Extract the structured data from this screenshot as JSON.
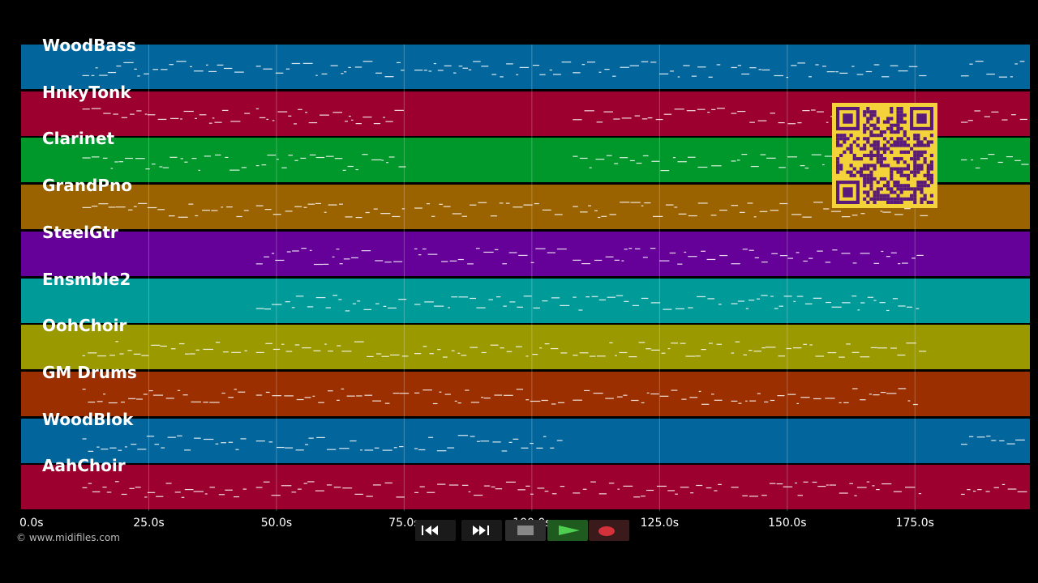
{
  "tracks": [
    {
      "name": "WoodBass",
      "color": "#02669c"
    },
    {
      "name": "HnkyTonk",
      "color": "#9c002f"
    },
    {
      "name": "Clarinet",
      "color": "#00972b"
    },
    {
      "name": "GrandPno",
      "color": "#9b6200"
    },
    {
      "name": "SteelGtr",
      "color": "#650099"
    },
    {
      "name": "Ensmble2",
      "color": "#009a98"
    },
    {
      "name": "OohChoir",
      "color": "#9a9900"
    },
    {
      "name": "GM Drums",
      "color": "#9b2f00"
    },
    {
      "name": "WoodBlok",
      "color": "#02669c"
    },
    {
      "name": "AahChoir",
      "color": "#9c002f"
    }
  ],
  "timeline": {
    "ticks": [
      "0.0s",
      "25.0s",
      "50.0s",
      "75.0s",
      "100.0s",
      "125.0s",
      "150.0s",
      "175.0s"
    ],
    "tick_values": [
      0,
      25,
      50,
      75,
      100,
      125,
      150,
      175
    ],
    "max_seconds": 197.5
  },
  "copyright": "© www.midifiles.com",
  "controls": [
    {
      "name": "rewind-button",
      "icon": "rewind-icon"
    },
    {
      "name": "fast-forward-button",
      "icon": "fast-forward-icon"
    },
    {
      "name": "stop-button",
      "icon": "stop-icon"
    },
    {
      "name": "play-button",
      "icon": "play-icon"
    },
    {
      "name": "record-button",
      "icon": "record-icon"
    }
  ],
  "qr": {
    "color": "#f4d23a",
    "module_color": "#5a1a7a"
  }
}
